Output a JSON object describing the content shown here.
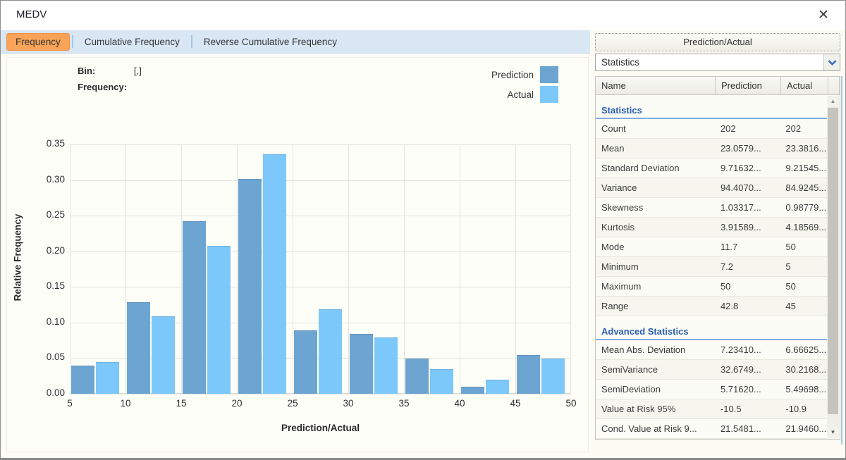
{
  "window": {
    "title": "MEDV"
  },
  "icons": {
    "close": "✕",
    "dropdown": "chevron-down",
    "scroll_up": "▲",
    "scroll_down": "▼"
  },
  "tabs": [
    {
      "label": "Frequency",
      "active": true
    },
    {
      "label": "Cumulative Frequency",
      "active": false
    },
    {
      "label": "Reverse Cumulative Frequency",
      "active": false
    }
  ],
  "chart": {
    "bin_label": "Bin:",
    "bin_value": "[,]",
    "frequency_label": "Frequency:",
    "frequency_value": ""
  },
  "chart_data": {
    "type": "bar",
    "title": "",
    "xlabel": "Prediction/Actual",
    "ylabel": "Relative Frequency",
    "bin_edges": [
      5,
      10,
      15,
      20,
      25,
      30,
      35,
      40,
      45,
      50
    ],
    "series": [
      {
        "name": "Prediction",
        "color": "#6CA4D2",
        "values": [
          0.0396,
          0.1287,
          0.2426,
          0.302,
          0.0891,
          0.0842,
          0.0495,
          0.0099,
          0.0545
        ]
      },
      {
        "name": "Actual",
        "color": "#7CC8FA",
        "values": [
          0.0446,
          0.1089,
          0.2079,
          0.3366,
          0.1188,
          0.0792,
          0.0347,
          0.0198,
          0.0495
        ]
      }
    ],
    "xtick_labels": [
      "5",
      "10",
      "15",
      "20",
      "25",
      "30",
      "35",
      "40",
      "45",
      "50"
    ],
    "ytick_labels": [
      "0.00",
      "0.05",
      "0.10",
      "0.15",
      "0.20",
      "0.25",
      "0.30",
      "0.35"
    ],
    "xlim": [
      5,
      50
    ],
    "ylim": [
      0,
      0.3678
    ],
    "grid": true,
    "legend_position": "top-right"
  },
  "side_panel": {
    "header_button": "Prediction/Actual",
    "dropdown_value": "Statistics",
    "table": {
      "columns": [
        "Name",
        "Prediction",
        "Actual"
      ],
      "sections": [
        {
          "title": "Statistics",
          "rows": [
            [
              "Count",
              "202",
              "202"
            ],
            [
              "Mean",
              "23.0579...",
              "23.3816..."
            ],
            [
              "Standard Deviation",
              "9.71632...",
              "9.21545..."
            ],
            [
              "Variance",
              "94.4070...",
              "84.9245..."
            ],
            [
              "Skewness",
              "1.03317...",
              "0.98779..."
            ],
            [
              "Kurtosis",
              "3.91589...",
              "4.18569..."
            ],
            [
              "Mode",
              "11.7",
              "50"
            ],
            [
              "Minimum",
              "7.2",
              "5"
            ],
            [
              "Maximum",
              "50",
              "50"
            ],
            [
              "Range",
              "42.8",
              "45"
            ]
          ]
        },
        {
          "title": "Advanced Statistics",
          "rows": [
            [
              "Mean Abs. Deviation",
              "7.23410...",
              "6.66625..."
            ],
            [
              "SemiVariance",
              "32.6749...",
              "30.2168..."
            ],
            [
              "SemiDeviation",
              "5.71620...",
              "5.49698..."
            ],
            [
              "Value at Risk 95%",
              "-10.5",
              "-10.9"
            ],
            [
              "Cond. Value at Risk 9...",
              "21.5481...",
              "21.9460..."
            ]
          ]
        }
      ]
    }
  },
  "colors": {
    "accent_orange": "#F9A458",
    "tab_bar": "#D9E7F4",
    "prediction": "#6CA4D2",
    "actual": "#7CC8FA",
    "section_blue": "#2A5DB0"
  }
}
